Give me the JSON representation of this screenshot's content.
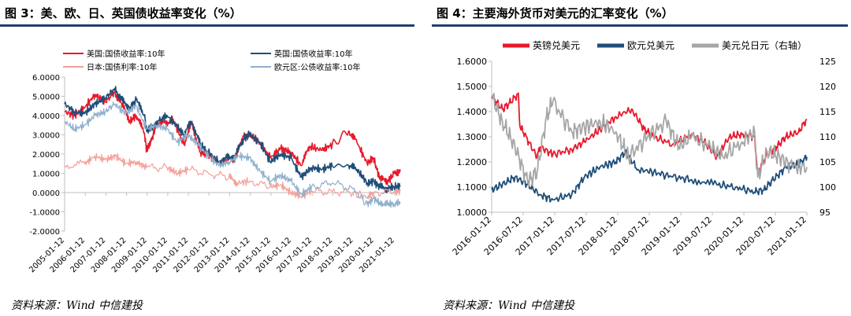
{
  "left": {
    "title": "图 3：美、欧、日、英国债收益率变化（%）",
    "source": "资料来源：Wind 中信建投"
  },
  "right": {
    "title": "图 4：主要海外货币对美元的汇率变化（%）",
    "source": "资料来源：Wind 中信建投"
  },
  "chart_data": [
    {
      "type": "line",
      "id": "bond-yields",
      "title": "图 3：美、欧、日、英国债收益率变化（%）",
      "ylim": [
        -2,
        6
      ],
      "yticks": [
        "6.0000",
        "5.0000",
        "4.0000",
        "3.0000",
        "2.0000",
        "1.0000",
        "0.0000",
        "-1.0000",
        "-2.0000"
      ],
      "x_start": 2005.03,
      "x_end": 2021.3,
      "xticks": [
        "2005-01-12",
        "2006-01-12",
        "2007-01-12",
        "2008-01-12",
        "2009-01-12",
        "2010-01-12",
        "2011-01-12",
        "2012-01-12",
        "2013-01-12",
        "2014-01-12",
        "2015-01-12",
        "2016-01-12",
        "2017-01-12",
        "2018-01-12",
        "2019-01-12",
        "2020-01-12",
        "2021-01-12"
      ],
      "legend_position": "top",
      "series": [
        {
          "name": "美国:国债收益率:10年",
          "color": "#e8192c",
          "width": 1.6,
          "x": [
            2005.03,
            2005.5,
            2006.0,
            2006.5,
            2007.0,
            2007.45,
            2007.8,
            2008.2,
            2008.5,
            2008.9,
            2009.0,
            2009.2,
            2009.5,
            2009.9,
            2010.3,
            2010.8,
            2011.2,
            2011.6,
            2011.9,
            2012.5,
            2012.9,
            2013.3,
            2013.7,
            2014.0,
            2014.5,
            2015.0,
            2015.5,
            2016.0,
            2016.5,
            2016.9,
            2017.5,
            2018.0,
            2018.8,
            2019.2,
            2019.7,
            2020.0,
            2020.3,
            2020.7,
            2021.0,
            2021.3
          ],
          "values": [
            4.2,
            4.0,
            4.4,
            5.1,
            4.7,
            5.2,
            4.6,
            3.7,
            4.0,
            3.1,
            2.2,
            2.6,
            3.6,
            3.6,
            3.8,
            2.5,
            3.6,
            2.1,
            2.0,
            1.6,
            1.7,
            1.8,
            2.9,
            3.0,
            2.6,
            1.8,
            2.3,
            2.1,
            1.4,
            2.4,
            2.2,
            2.5,
            3.2,
            2.6,
            1.5,
            1.8,
            0.7,
            0.6,
            1.0,
            1.1
          ]
        },
        {
          "name": "英国:国债收益率:10年",
          "color": "#1f4e79",
          "width": 1.6,
          "x": [
            2005.03,
            2005.5,
            2006.0,
            2006.5,
            2007.0,
            2007.45,
            2007.8,
            2008.2,
            2008.5,
            2008.9,
            2009.0,
            2009.3,
            2009.7,
            2010.0,
            2010.5,
            2010.8,
            2011.2,
            2011.6,
            2011.9,
            2012.5,
            2012.9,
            2013.3,
            2013.7,
            2014.0,
            2014.5,
            2015.0,
            2015.5,
            2016.0,
            2016.5,
            2017.0,
            2017.5,
            2018.0,
            2018.8,
            2019.2,
            2019.7,
            2020.0,
            2020.3,
            2020.7,
            2021.0,
            2021.3
          ],
          "values": [
            4.6,
            4.2,
            4.1,
            4.6,
            4.9,
            5.4,
            4.8,
            4.4,
            4.8,
            4.0,
            3.2,
            3.5,
            3.8,
            4.0,
            3.4,
            3.0,
            3.7,
            2.5,
            2.2,
            1.6,
            1.8,
            1.9,
            2.8,
            3.0,
            2.6,
            1.6,
            2.0,
            1.8,
            0.8,
            1.3,
            1.2,
            1.4,
            1.4,
            1.2,
            0.5,
            0.6,
            0.3,
            0.2,
            0.3,
            0.3
          ]
        },
        {
          "name": "日本:国债利率:10年",
          "color": "#f4a09a",
          "width": 1.2,
          "x": [
            2005.03,
            2006.0,
            2006.5,
            2007.0,
            2007.5,
            2008.0,
            2008.5,
            2009.0,
            2010.0,
            2010.5,
            2011.0,
            2012.0,
            2013.0,
            2013.4,
            2014.0,
            2015.0,
            2015.5,
            2016.0,
            2016.5,
            2017.0,
            2018.0,
            2019.0,
            2019.7,
            2020.0,
            2021.0,
            2021.3
          ],
          "values": [
            1.4,
            1.5,
            1.9,
            1.7,
            1.9,
            1.5,
            1.6,
            1.3,
            1.3,
            1.0,
            1.2,
            1.0,
            0.8,
            0.5,
            0.6,
            0.3,
            0.4,
            0.0,
            -0.2,
            0.05,
            0.05,
            0.0,
            -0.25,
            0.0,
            0.05,
            0.08
          ]
        },
        {
          "name": "欧元区:公债收益率:10年",
          "color": "#8fb0cc",
          "width": 1.2,
          "x": [
            2005.03,
            2005.5,
            2006.0,
            2006.5,
            2007.0,
            2007.45,
            2008.0,
            2008.5,
            2009.0,
            2009.5,
            2010.0,
            2010.5,
            2011.0,
            2011.5,
            2012.0,
            2012.5,
            2013.0,
            2013.5,
            2014.0,
            2014.5,
            2015.0,
            2015.5,
            2016.0,
            2016.5,
            2017.0,
            2018.0,
            2019.0,
            2019.7,
            2020.0,
            2020.3,
            2020.7,
            2021.0,
            2021.3
          ],
          "values": [
            3.7,
            3.3,
            3.5,
            4.0,
            4.2,
            4.6,
            4.1,
            4.5,
            3.3,
            3.5,
            3.3,
            2.6,
            3.0,
            2.5,
            1.9,
            1.4,
            1.6,
            1.9,
            1.8,
            1.1,
            0.6,
            0.9,
            0.6,
            -0.1,
            0.3,
            0.5,
            0.2,
            -0.6,
            -0.3,
            -0.5,
            -0.6,
            -0.6,
            -0.5
          ]
        }
      ]
    },
    {
      "type": "line",
      "id": "fx-rates",
      "title": "图 4：主要海外货币对美元的汇率变化（%）",
      "ylim": [
        1.0,
        1.6
      ],
      "y2lim": [
        95,
        125
      ],
      "yticks": [
        "1.6000",
        "1.5000",
        "1.4000",
        "1.3000",
        "1.2000",
        "1.1000",
        "1.0000"
      ],
      "y2ticks": [
        "125",
        "120",
        "115",
        "110",
        "105",
        "100",
        "95"
      ],
      "x_start": 2016.03,
      "x_end": 2021.03,
      "xticks": [
        "2016-01-12",
        "2016-07-12",
        "2017-01-12",
        "2017-07-12",
        "2018-01-12",
        "2018-07-12",
        "2019-01-12",
        "2019-07-12",
        "2020-01-12",
        "2020-07-12",
        "2021-01-12"
      ],
      "legend_position": "top",
      "series": [
        {
          "name": "英镑兑美元",
          "color": "#e8192c",
          "width": 1.8,
          "axis": "left",
          "x": [
            2016.03,
            2016.2,
            2016.3,
            2016.45,
            2016.48,
            2016.55,
            2016.75,
            2016.8,
            2017.0,
            2017.3,
            2017.5,
            2017.75,
            2018.0,
            2018.25,
            2018.45,
            2018.6,
            2018.9,
            2019.2,
            2019.4,
            2019.6,
            2019.8,
            2020.0,
            2020.2,
            2020.25,
            2020.4,
            2020.55,
            2020.7,
            2020.9,
            2021.03
          ],
          "values": [
            1.46,
            1.41,
            1.43,
            1.47,
            1.34,
            1.31,
            1.22,
            1.26,
            1.23,
            1.25,
            1.28,
            1.33,
            1.38,
            1.41,
            1.33,
            1.3,
            1.27,
            1.31,
            1.28,
            1.22,
            1.3,
            1.31,
            1.3,
            1.16,
            1.23,
            1.26,
            1.3,
            1.32,
            1.37
          ]
        },
        {
          "name": "欧元兑美元",
          "color": "#1f4e79",
          "width": 1.8,
          "axis": "left",
          "x": [
            2016.03,
            2016.2,
            2016.4,
            2016.6,
            2016.8,
            2017.0,
            2017.3,
            2017.5,
            2017.75,
            2018.0,
            2018.15,
            2018.35,
            2018.6,
            2018.9,
            2019.2,
            2019.6,
            2019.9,
            2020.2,
            2020.35,
            2020.5,
            2020.7,
            2020.9,
            2021.03
          ],
          "values": [
            1.09,
            1.11,
            1.14,
            1.11,
            1.07,
            1.05,
            1.07,
            1.14,
            1.18,
            1.2,
            1.24,
            1.17,
            1.16,
            1.14,
            1.13,
            1.11,
            1.1,
            1.08,
            1.09,
            1.13,
            1.18,
            1.19,
            1.22
          ]
        },
        {
          "name": "美元兑日元（右轴）",
          "color": "#a6a6a6",
          "width": 1.8,
          "axis": "right",
          "x": [
            2016.03,
            2016.2,
            2016.4,
            2016.6,
            2016.75,
            2016.9,
            2017.0,
            2017.3,
            2017.5,
            2017.75,
            2018.0,
            2018.2,
            2018.5,
            2018.8,
            2019.0,
            2019.2,
            2019.5,
            2019.7,
            2020.0,
            2020.2,
            2020.25,
            2020.4,
            2020.6,
            2020.8,
            2021.03
          ],
          "values": [
            118,
            113,
            108,
            101,
            103,
            114,
            117,
            111,
            112,
            113,
            111,
            106,
            110,
            113,
            108,
            110,
            108,
            106,
            109,
            111,
            102,
            107,
            106,
            104,
            104
          ]
        }
      ]
    }
  ]
}
